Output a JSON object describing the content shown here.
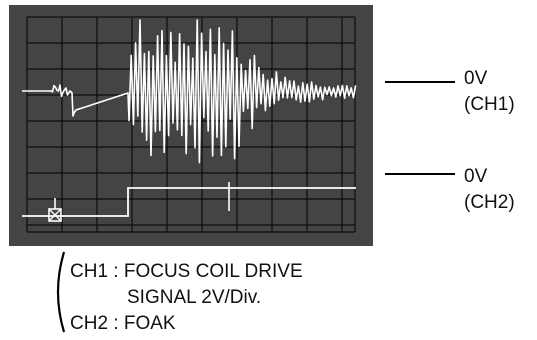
{
  "scope": {
    "screen_color": "#444444",
    "grid_color": "#0d0d0d",
    "trace_color": "#ffffff"
  },
  "markers": {
    "ch1_ref_line1": "0V",
    "ch1_ref_line2": "(CH1)",
    "ch2_ref_line1": "0V",
    "ch2_ref_line2": "(CH2)"
  },
  "legend": {
    "ch1_line1": "CH1 : FOCUS COIL DRIVE",
    "ch1_line2": "SIGNAL 2V/Div.",
    "ch2_line": "CH2 : FOAK"
  }
}
